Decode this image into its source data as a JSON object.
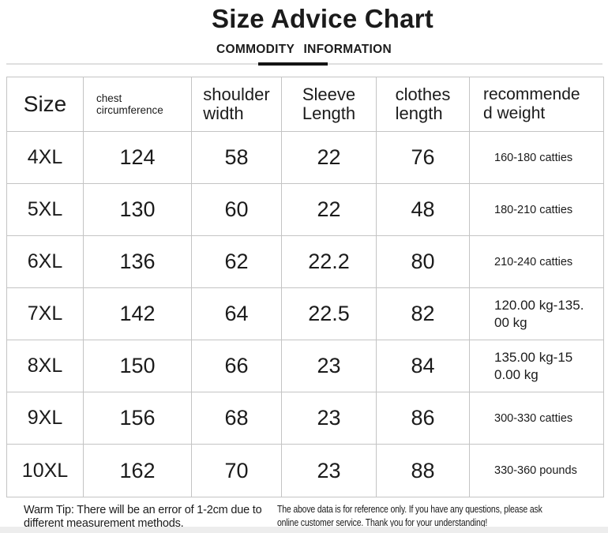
{
  "page": {
    "title": "Size Advice Chart",
    "section_label": "COMMODITY INFORMATION"
  },
  "chart_data": {
    "type": "table",
    "title": "Size Advice Chart",
    "columns": [
      "Size",
      "chest circumference",
      "shoulder width",
      "Sleeve Length",
      "clothes length",
      "recommended weight"
    ],
    "header_display": [
      {
        "l1": "Size",
        "l2": ""
      },
      {
        "l1": "chest",
        "l2": "circumference"
      },
      {
        "l1": "shoulder",
        "l2": "width"
      },
      {
        "l1": "Sleeve",
        "l2": "Length"
      },
      {
        "l1": "clothes",
        "l2": "length"
      },
      {
        "l1": "recommende",
        "l2": "d weight"
      }
    ],
    "rows": [
      {
        "size": "4XL",
        "chest": "124",
        "shoulder": "58",
        "sleeve": "22",
        "clothes": "76",
        "weight": "160-180 catties",
        "weight_l1": "160-180 catties",
        "weight_l2": ""
      },
      {
        "size": "5XL",
        "chest": "130",
        "shoulder": "60",
        "sleeve": "22",
        "clothes": "48",
        "weight": "180-210 catties",
        "weight_l1": "180-210 catties",
        "weight_l2": ""
      },
      {
        "size": "6XL",
        "chest": "136",
        "shoulder": "62",
        "sleeve": "22.2",
        "clothes": "80",
        "weight": "210-240 catties",
        "weight_l1": "210-240 catties",
        "weight_l2": ""
      },
      {
        "size": "7XL",
        "chest": "142",
        "shoulder": "64",
        "sleeve": "22.5",
        "clothes": "82",
        "weight": "120.00 kg-135.00 kg",
        "weight_l1": "120.00 kg-135.",
        "weight_l2": "00 kg"
      },
      {
        "size": "8XL",
        "chest": "150",
        "shoulder": "66",
        "sleeve": "23",
        "clothes": "84",
        "weight": "135.00 kg-150.00 kg",
        "weight_l1": "135.00 kg-15",
        "weight_l2": "0.00 kg"
      },
      {
        "size": "9XL",
        "chest": "156",
        "shoulder": "68",
        "sleeve": "23",
        "clothes": "86",
        "weight": "300-330 catties",
        "weight_l1": "300-330 catties",
        "weight_l2": ""
      },
      {
        "size": "10XL",
        "chest": "162",
        "shoulder": "70",
        "sleeve": "23",
        "clothes": "88",
        "weight": "330-360 pounds",
        "weight_l1": "330-360 pounds",
        "weight_l2": ""
      }
    ]
  },
  "footer": {
    "warm_tip_line1": "Warm Tip: There will be an error of 1-2cm due to",
    "warm_tip_line2": "different measurement methods,",
    "disclaimer_line1": "The above data is for reference only. If you have any questions, please ask",
    "disclaimer_line2": "online customer service. Thank you for your understanding!"
  },
  "colors": {
    "text": "#1b1b1b",
    "table_border": "#c4c4c4",
    "divider": "#dfdfdf",
    "accent_underline": "#141414",
    "footer_bar": "#ededed"
  }
}
